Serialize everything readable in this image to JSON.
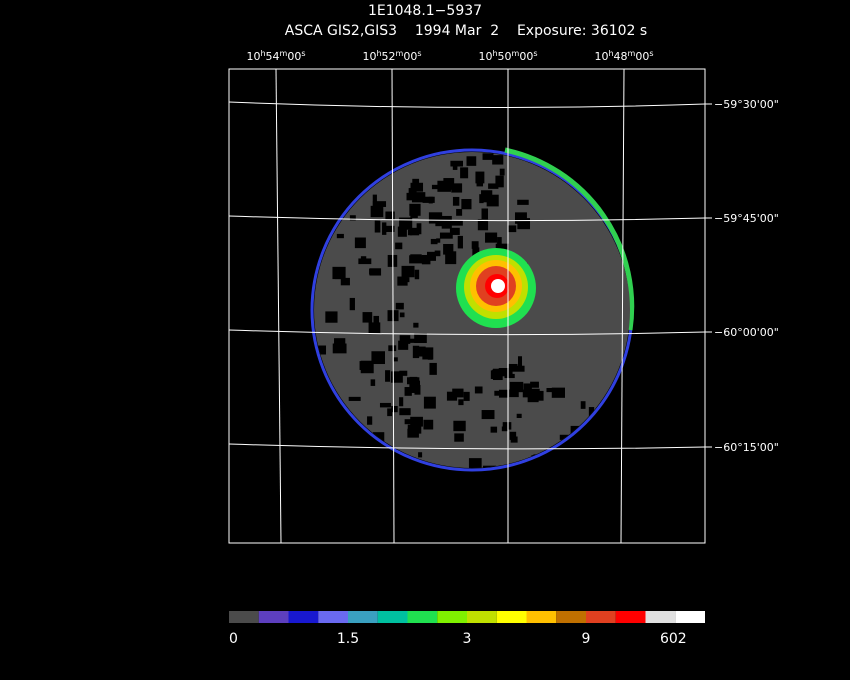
{
  "header": {
    "title": "1E1048.1−5937",
    "subtitle": "ASCA GIS2,GIS3    1994 Mar  2    Exposure: 36102 s"
  },
  "ra_labels": [
    [
      "10",
      "h",
      "54",
      "m",
      "00",
      "s"
    ],
    [
      "10",
      "h",
      "52",
      "m",
      "00",
      "s"
    ],
    [
      "10",
      "h",
      "50",
      "m",
      "00",
      "s"
    ],
    [
      "10",
      "h",
      "48",
      "m",
      "00",
      "s"
    ]
  ],
  "dec_labels": [
    "−59°30'00\"",
    "−59°45'00\"",
    "−60°00'00\"",
    "−60°15'00\""
  ],
  "colorbar": {
    "colors": [
      "#4b4b4b",
      "#5d3fbf",
      "#1818d0",
      "#6a6af0",
      "#3aa0c0",
      "#00c0a0",
      "#20e050",
      "#80f000",
      "#c0e000",
      "#ffff00",
      "#ffc000",
      "#c07000",
      "#e04020",
      "#ff0000",
      "#e0e0e0",
      "#ffffff"
    ],
    "tick_labels": [
      "0",
      "1.5",
      "3",
      "9",
      "602"
    ]
  }
}
